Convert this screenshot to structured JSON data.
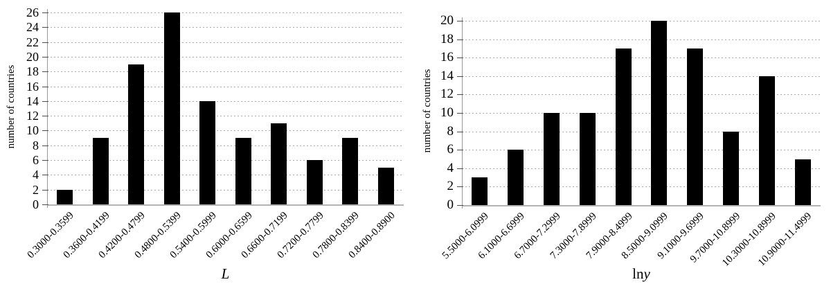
{
  "figure": {
    "background": "#ffffff"
  },
  "colors": {
    "bar": "#000000",
    "gridline": "#a9a9a9",
    "x_axis_line": "#b3b3b3",
    "y_axis_line": "#999999",
    "tick_mark": "#4d4d4d",
    "text": "#000000"
  },
  "chart_data": [
    {
      "type": "bar",
      "title": "",
      "ylabel": "number of countries",
      "xlabel_prefix": "",
      "xlabel_main": "L",
      "categories": [
        "0.3000-0.3599",
        "0.3600-0.4199",
        "0.4200-0.4799",
        "0.4800-0.5399",
        "0.5400-0.5999",
        "0.6000-0.6599",
        "0.6600-0.7199",
        "0.7200-0.7799",
        "0.7800-0.8399",
        "0.8400-0.8900"
      ],
      "values": [
        2,
        9,
        19,
        26,
        14,
        9,
        11,
        6,
        9,
        5
      ],
      "ylim": [
        0,
        26
      ],
      "ytick_step": 2,
      "grid": "horizontal-dotted",
      "legend": "none",
      "bar_color": "#000000"
    },
    {
      "type": "bar",
      "title": "",
      "ylabel": "number of countries",
      "xlabel_prefix": "ln",
      "xlabel_main": "y",
      "categories": [
        "5.5000-6.0999",
        "6.1000-6.6999",
        "6.7000-7.2999",
        "7.3000-7.8999",
        "7.9000-8.4999",
        "8.5000-9.0999",
        "9.1000-9.6999",
        "9.7000-10.8999",
        "10.3000-10.8999",
        "10.9000-11.4999"
      ],
      "values": [
        3,
        6,
        10,
        10,
        17,
        20,
        17,
        8,
        14,
        5
      ],
      "ylim": [
        0,
        20
      ],
      "ytick_step": 2,
      "grid": "horizontal-dotted",
      "legend": "none",
      "bar_color": "#000000"
    }
  ]
}
